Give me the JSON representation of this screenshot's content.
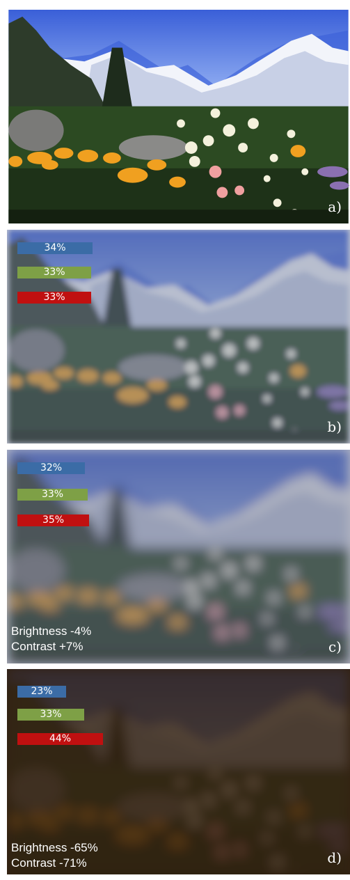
{
  "panels": [
    {
      "label": "a)"
    },
    {
      "label": "b)",
      "bars": {
        "blue": "34%",
        "green": "33%",
        "red": "33%"
      }
    },
    {
      "label": "c)",
      "bars": {
        "blue": "32%",
        "green": "33%",
        "red": "35%"
      },
      "brightness": "Brightness -4%",
      "contrast": "Contrast +7%"
    },
    {
      "label": "d)",
      "bars": {
        "blue": "23%",
        "green": "33%",
        "red": "44%"
      },
      "brightness": "Brightness -65%",
      "contrast": "Contrast -71%"
    }
  ]
}
